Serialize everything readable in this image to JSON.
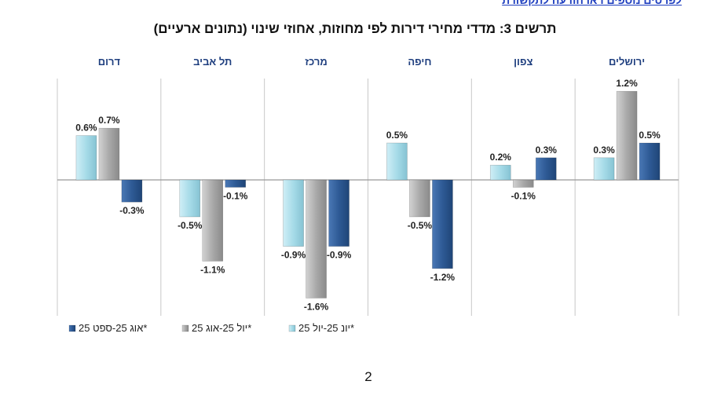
{
  "header": {
    "link_text": "לפרטים נוספים ראו הודעה לתקשורת"
  },
  "page": {
    "number": "2"
  },
  "colors": {
    "series_1": "#a6dbe8",
    "series_2": "#a9a9a9",
    "series_3": "#2e5a95",
    "category_label": "#1f3f7f",
    "axis": "#999999",
    "divider": "#c8c8c8"
  },
  "chart_data": {
    "type": "bar",
    "title": "תרשים 3: מדדי מחירי דירות לפי מחוזות, אחוזי שינוי (נתונים ארעיים)",
    "categories": [
      "ירושלים",
      "צפון",
      "חיפה",
      "מרכז",
      "תל אביב",
      "דרום"
    ],
    "series": [
      {
        "name": "יונ 25-יול 25*",
        "values": [
          0.3,
          0.2,
          0.5,
          -0.9,
          -0.5,
          0.6
        ],
        "labels": [
          "0.3%",
          "0.2%",
          "0.5%",
          "-0.9%",
          "-0.5%",
          "0.6%"
        ]
      },
      {
        "name": "יול 25-אוג 25*",
        "values": [
          1.2,
          -0.1,
          -0.5,
          -1.6,
          -1.1,
          0.7
        ],
        "labels": [
          "1.2%",
          "-0.1%",
          "-0.5%",
          "-1.6%",
          "-1.1%",
          "0.7%"
        ]
      },
      {
        "name": "אוג 25-ספט 25*",
        "values": [
          0.5,
          0.3,
          -1.2,
          -0.9,
          -0.1,
          -0.3
        ],
        "labels": [
          "0.5%",
          "0.3%",
          "-1.2%",
          "-0.9%",
          "-0.1%",
          "-0.3%"
        ]
      }
    ],
    "ylim": [
      -1.6,
      1.2
    ],
    "legend_position": "bottom-left"
  }
}
